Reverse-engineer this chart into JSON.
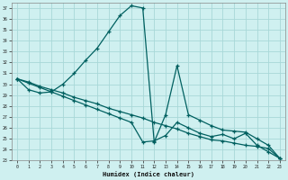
{
  "xlabel": "Humidex (Indice chaleur)",
  "bg_color": "#cff0f0",
  "grid_color": "#a8d8d8",
  "line_color": "#006060",
  "xlim": [
    -0.5,
    23.5
  ],
  "ylim": [
    23,
    37.5
  ],
  "yticks": [
    23,
    24,
    25,
    26,
    27,
    28,
    29,
    30,
    31,
    32,
    33,
    34,
    35,
    36,
    37
  ],
  "xticks": [
    0,
    1,
    2,
    3,
    4,
    5,
    6,
    7,
    8,
    9,
    10,
    11,
    12,
    13,
    14,
    15,
    16,
    17,
    18,
    19,
    20,
    21,
    22,
    23
  ],
  "lines": [
    {
      "x": [
        0,
        1,
        2,
        3,
        4,
        5,
        6,
        7,
        8,
        9,
        10,
        11,
        12,
        13,
        14,
        15,
        16,
        17,
        18,
        19,
        20,
        21,
        22,
        23
      ],
      "y": [
        30.5,
        29.5,
        29.2,
        29.3,
        30.0,
        31.0,
        32.2,
        33.3,
        34.8,
        36.3,
        37.2,
        37.0,
        24.7,
        27.2,
        31.7,
        27.2,
        26.7,
        26.2,
        25.8,
        25.7,
        25.6,
        25.0,
        24.4,
        23.2
      ]
    },
    {
      "x": [
        0,
        1,
        2,
        3,
        4,
        5,
        6,
        7,
        8,
        9,
        10,
        11,
        12,
        13,
        14,
        15,
        16,
        17,
        18,
        19,
        20,
        21,
        22,
        23
      ],
      "y": [
        30.5,
        30.2,
        29.8,
        29.5,
        29.2,
        28.8,
        28.5,
        28.2,
        27.8,
        27.5,
        27.2,
        26.9,
        26.5,
        26.2,
        25.9,
        25.5,
        25.2,
        24.9,
        24.8,
        24.6,
        24.4,
        24.3,
        24.1,
        23.2
      ]
    },
    {
      "x": [
        0,
        1,
        2,
        3,
        4,
        5,
        6,
        7,
        8,
        9,
        10,
        11,
        12,
        13,
        14,
        15,
        16,
        17,
        18,
        19,
        20,
        21,
        22,
        23
      ],
      "y": [
        30.5,
        30.1,
        29.7,
        29.3,
        28.9,
        28.5,
        28.1,
        27.7,
        27.3,
        26.9,
        26.5,
        24.7,
        24.8,
        25.3,
        26.5,
        26.0,
        25.5,
        25.2,
        25.4,
        25.0,
        25.5,
        24.4,
        23.8,
        23.2
      ]
    }
  ]
}
